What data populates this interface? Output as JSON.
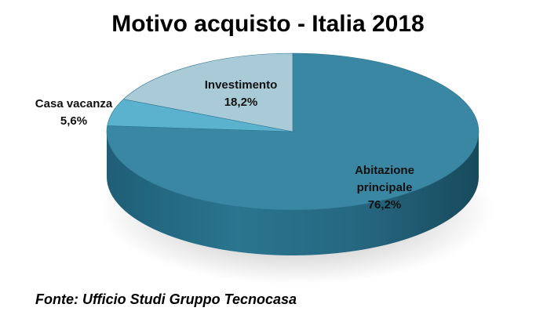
{
  "chart_data": {
    "type": "pie",
    "title": "Motivo acquisto - Italia 2018",
    "categories": [
      "Abitazione principale",
      "Casa vacanza",
      "Investimento"
    ],
    "values": [
      76.2,
      5.6,
      18.2
    ],
    "value_labels": [
      "76,2%",
      "5,6%",
      "18,2%"
    ],
    "label_lines": [
      [
        "Abitazione",
        "principale"
      ],
      [
        "Casa vacanza"
      ],
      [
        "Investimento"
      ]
    ],
    "colors": [
      "#3a87a3",
      "#5bb2cf",
      "#a9cbd7"
    ]
  },
  "source": "Fonte: Ufficio Studi Gruppo Tecnocasa"
}
